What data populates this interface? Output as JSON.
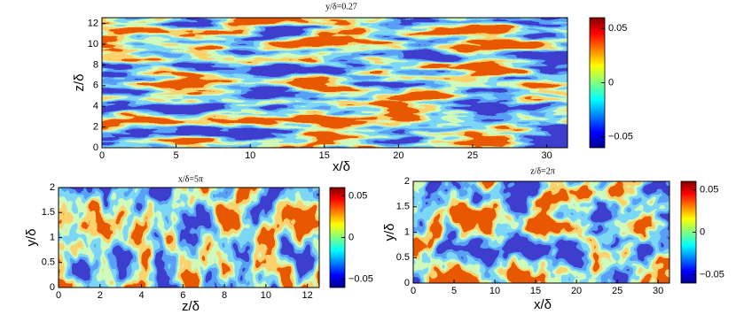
{
  "chart_data": [
    {
      "type": "contour",
      "title": "y/δ=0.27",
      "x_label": "x/δ",
      "y_label": "z/δ",
      "xlim": [
        0,
        31.4
      ],
      "xticks": [
        0,
        5,
        10,
        15,
        20,
        25,
        30
      ],
      "ylim": [
        0,
        12.57
      ],
      "yticks": [
        0,
        2,
        4,
        6,
        8,
        10,
        12
      ],
      "clim": [
        -0.06,
        0.06
      ],
      "cticks": [
        0.05,
        0,
        {
          "value": -0.05,
          "label": "−0.05"
        }
      ],
      "colormap": "jet"
    },
    {
      "type": "contour",
      "title": "x/δ=5π",
      "x_label": "z/δ",
      "y_label": "y/δ",
      "xlim": [
        0,
        12.57
      ],
      "xticks": [
        0,
        2,
        4,
        6,
        8,
        10,
        12
      ],
      "ylim": [
        0,
        2
      ],
      "yticks": [
        0,
        0.5,
        1,
        1.5,
        2
      ],
      "clim": [
        -0.06,
        0.06
      ],
      "cticks": [
        0.05,
        0,
        {
          "value": -0.05,
          "label": "−0.05"
        }
      ],
      "colormap": "jet"
    },
    {
      "type": "contour",
      "title": "z/δ=2π",
      "x_label": "x/δ",
      "y_label": "y/δ",
      "xlim": [
        0,
        31.4
      ],
      "xticks": [
        0,
        5,
        10,
        15,
        20,
        25,
        30
      ],
      "ylim": [
        0,
        2
      ],
      "yticks": [
        0,
        0.5,
        1,
        1.5,
        2
      ],
      "clim": [
        -0.06,
        0.06
      ],
      "cticks": [
        0.05,
        0,
        {
          "value": -0.05,
          "label": "−0.05"
        }
      ],
      "colormap": "jet"
    }
  ]
}
